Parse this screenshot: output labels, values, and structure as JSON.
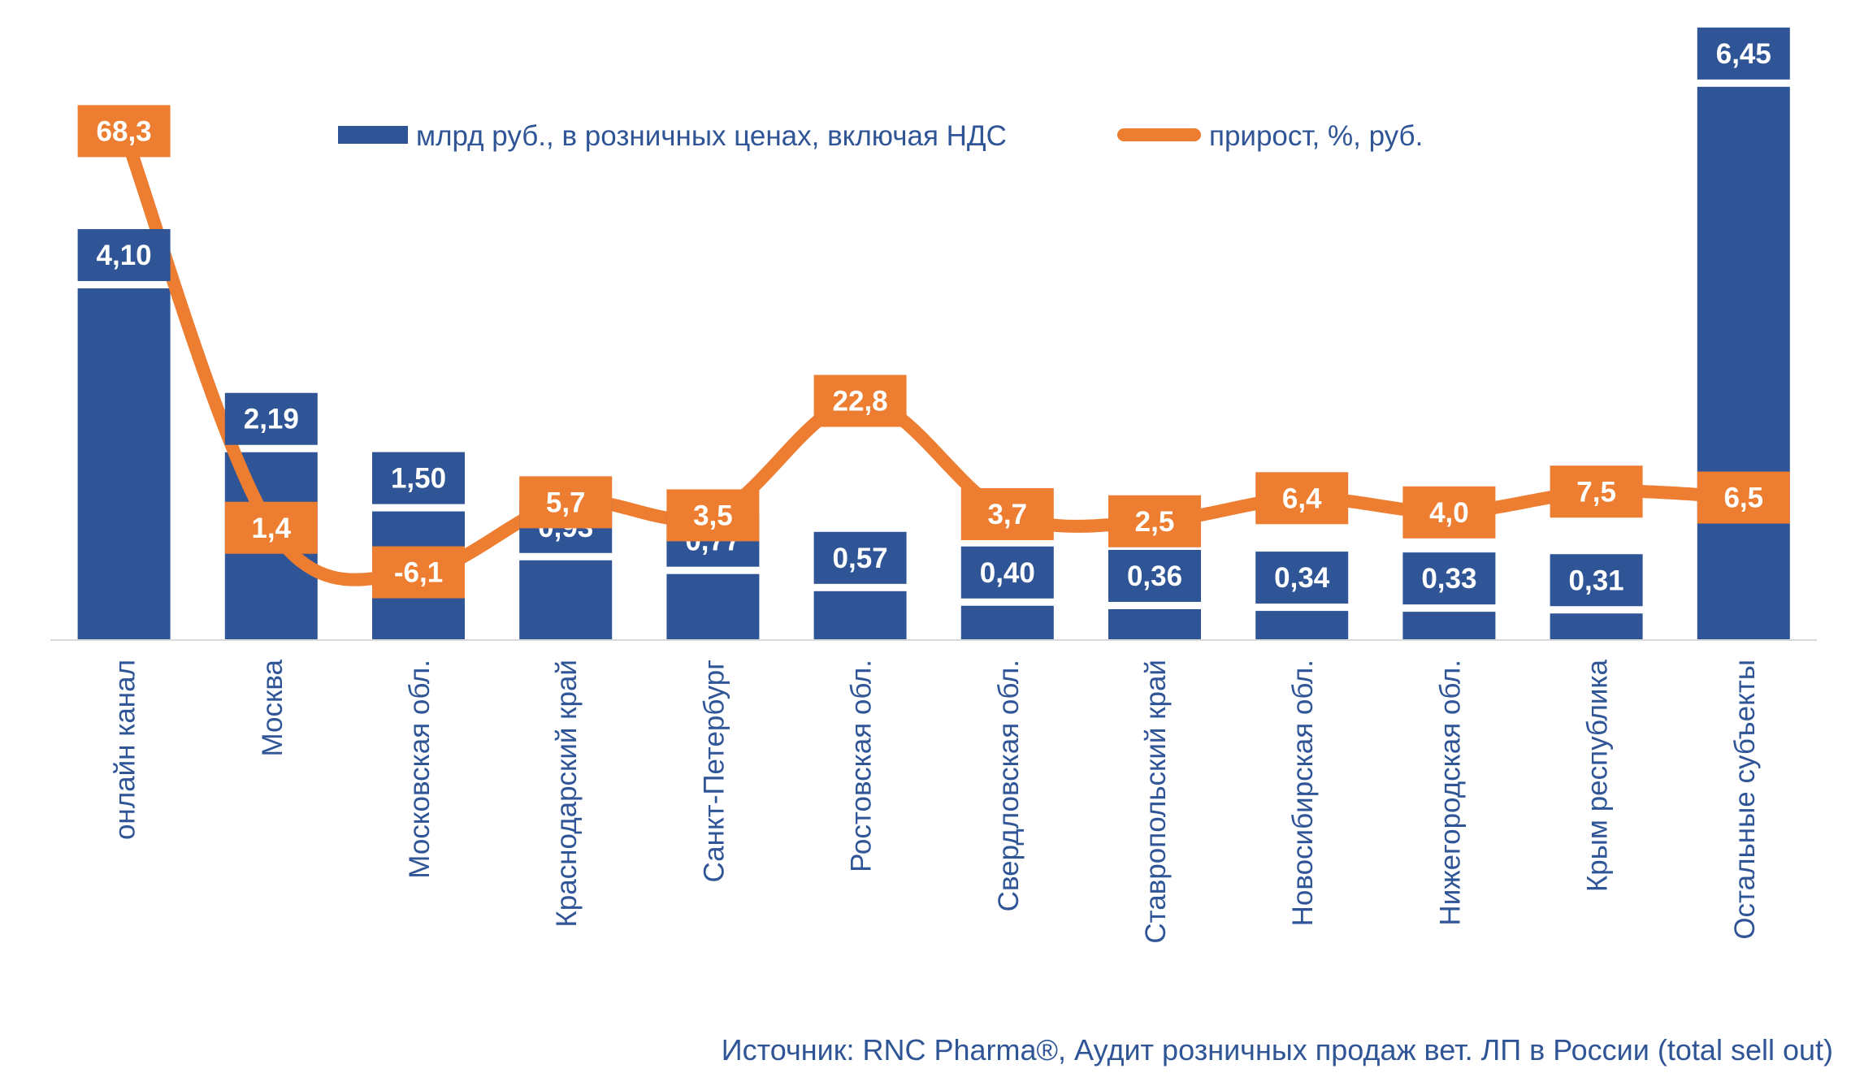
{
  "chart_data": {
    "type": "bar",
    "categories": [
      "онлайн канал",
      "Москва",
      "Московская обл.",
      "Краснодарский край",
      "Санкт-Петербург",
      "Ростовская обл.",
      "Свердловская обл.",
      "Ставропольский край",
      "Новосибирская обл.",
      "Нижегородская обл.",
      "Крым республика",
      "Остальные субъекты"
    ],
    "series": [
      {
        "name": "млрд руб., в розничных ценах, включая НДС",
        "type": "bar",
        "color": "#2F5597",
        "values": [
          4.1,
          2.19,
          1.5,
          0.93,
          0.77,
          0.57,
          0.4,
          0.36,
          0.34,
          0.33,
          0.31,
          6.45
        ],
        "labels": [
          "4,10",
          "2,19",
          "1,50",
          "0,93",
          "0,77",
          "0,57",
          "0,40",
          "0,36",
          "0,34",
          "0,33",
          "0,31",
          "6,45"
        ]
      },
      {
        "name": "прирост, %, руб.",
        "type": "line",
        "smooth": true,
        "color": "#ED7D31",
        "values": [
          68.3,
          1.4,
          -6.1,
          5.7,
          3.5,
          22.8,
          3.7,
          2.5,
          6.4,
          4.0,
          7.5,
          6.5
        ],
        "labels": [
          "68,3",
          "1,4",
          "-6,1",
          "5,7",
          "3,5",
          "22,8",
          "3,7",
          "2,5",
          "6,4",
          "4,0",
          "7,5",
          "6,5"
        ]
      }
    ],
    "legend_position": "top",
    "grid": false,
    "text_color": "#2F5597"
  },
  "source": "Источник: RNC Pharma®, Аудит розничных продаж вет. ЛП в России (total sell out)"
}
